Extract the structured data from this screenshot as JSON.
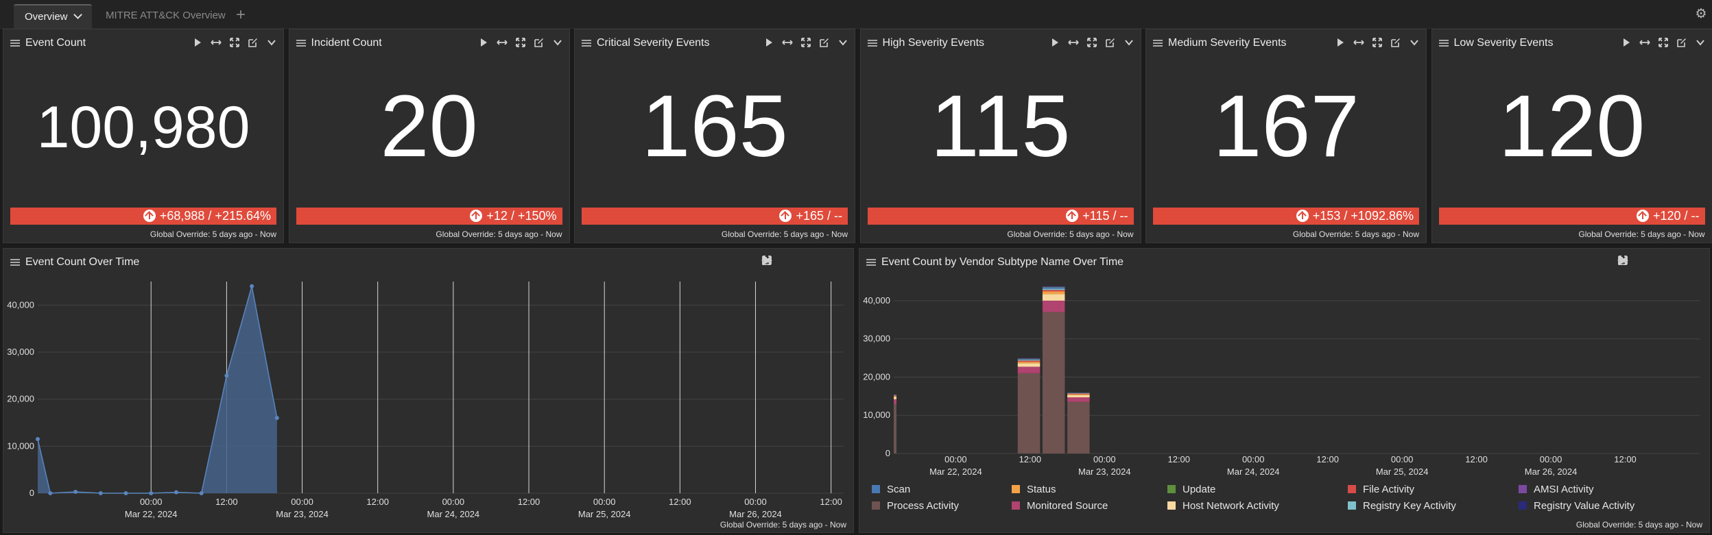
{
  "tabs": [
    {
      "label": "Overview",
      "active": true
    },
    {
      "label": "MITRE ATT&CK Overview",
      "active": false
    }
  ],
  "icons": {
    "add": "plus-icon",
    "settings": "gear-icon",
    "play": "play-icon",
    "resize": "resize-horizontal-icon",
    "expand": "expand-icon",
    "edit": "edit-icon",
    "menu": "chevron-down-icon",
    "drag": "hamburger-icon"
  },
  "colors": {
    "alert": "#e04a3b",
    "area": "#46648c"
  },
  "stats": [
    {
      "title": "Event Count",
      "value": "100,980",
      "change": "+68,988 / +215.64%",
      "override": "Global Override: 5 days ago - Now"
    },
    {
      "title": "Incident Count",
      "value": "20",
      "change": "+12 / +150%",
      "override": "Global Override: 5 days ago - Now"
    },
    {
      "title": "Critical Severity Events",
      "value": "165",
      "change": "+165 / --",
      "override": "Global Override: 5 days ago - Now"
    },
    {
      "title": "High Severity Events",
      "value": "115",
      "change": "+115 / --",
      "override": "Global Override: 5 days ago - Now"
    },
    {
      "title": "Medium Severity Events",
      "value": "167",
      "change": "+153 / +1092.86%",
      "override": "Global Override: 5 days ago - Now"
    },
    {
      "title": "Low Severity Events",
      "value": "120",
      "change": "+120 / --",
      "override": "Global Override: 5 days ago - Now"
    }
  ],
  "timeline": {
    "title": "Event Count Over Time",
    "override": "Global Override: 5 days ago - Now"
  },
  "vendor": {
    "title": "Event Count by Vendor Subtype Name Over Time",
    "override": "Global Override: 5 days ago - Now"
  },
  "chart_data": [
    {
      "type": "area",
      "title": "Event Count Over Time",
      "ylim": [
        0,
        45000
      ],
      "yticks": [
        0,
        10000,
        20000,
        30000,
        40000
      ],
      "ytick_labels": [
        "0",
        "10,000",
        "20,000",
        "30,000",
        "40,000"
      ],
      "xlim_hours": [
        -18,
        110
      ],
      "xticks": [
        {
          "h": 0,
          "label": "00:00",
          "date": "Mar 22, 2024"
        },
        {
          "h": 12,
          "label": "12:00",
          "date": ""
        },
        {
          "h": 24,
          "label": "00:00",
          "date": "Mar 23, 2024"
        },
        {
          "h": 36,
          "label": "12:00",
          "date": ""
        },
        {
          "h": 48,
          "label": "00:00",
          "date": "Mar 24, 2024"
        },
        {
          "h": 60,
          "label": "12:00",
          "date": ""
        },
        {
          "h": 72,
          "label": "00:00",
          "date": "Mar 25, 2024"
        },
        {
          "h": 84,
          "label": "12:00",
          "date": ""
        },
        {
          "h": 96,
          "label": "00:00",
          "date": "Mar 26, 2024"
        },
        {
          "h": 108,
          "label": "12:00",
          "date": ""
        }
      ],
      "x": [
        -18,
        -16,
        -12,
        -8,
        -4,
        0,
        4,
        8,
        12,
        16,
        20
      ],
      "values": [
        11500,
        0,
        300,
        0,
        0,
        0,
        200,
        0,
        25000,
        44000,
        16000
      ],
      "grid": true
    },
    {
      "type": "bar",
      "stacked": true,
      "title": "Event Count by Vendor Subtype Name Over Time",
      "ylim": [
        0,
        45000
      ],
      "yticks": [
        0,
        10000,
        20000,
        30000,
        40000
      ],
      "ytick_labels": [
        "0",
        "10,000",
        "20,000",
        "30,000",
        "40,000"
      ],
      "xlim_hours": [
        -10,
        120
      ],
      "xticks": [
        {
          "h": 0,
          "label": "00:00",
          "date": "Mar 22, 2024"
        },
        {
          "h": 12,
          "label": "12:00",
          "date": ""
        },
        {
          "h": 24,
          "label": "00:00",
          "date": "Mar 23, 2024"
        },
        {
          "h": 36,
          "label": "12:00",
          "date": ""
        },
        {
          "h": 48,
          "label": "00:00",
          "date": "Mar 24, 2024"
        },
        {
          "h": 60,
          "label": "12:00",
          "date": ""
        },
        {
          "h": 72,
          "label": "00:00",
          "date": "Mar 25, 2024"
        },
        {
          "h": 84,
          "label": "12:00",
          "date": ""
        },
        {
          "h": 96,
          "label": "00:00",
          "date": "Mar 26, 2024"
        },
        {
          "h": 108,
          "label": "12:00",
          "date": ""
        }
      ],
      "bin_hours": 4,
      "bins": [
        -10,
        10,
        14,
        18
      ],
      "series": [
        {
          "name": "Process Activity",
          "color": "#6e5350",
          "values": [
            13000,
            21000,
            37000,
            13500
          ]
        },
        {
          "name": "Monitored Source",
          "color": "#b0436f",
          "values": [
            1200,
            1700,
            3000,
            1200
          ]
        },
        {
          "name": "Host Network Activity",
          "color": "#f8d9a0",
          "values": [
            600,
            900,
            1700,
            600
          ]
        },
        {
          "name": "Status",
          "color": "#f2a247",
          "values": [
            200,
            400,
            700,
            200
          ]
        },
        {
          "name": "File Activity",
          "color": "#d64c48",
          "values": [
            200,
            300,
            400,
            200
          ]
        },
        {
          "name": "Registry Key Activity",
          "color": "#7fc2c9",
          "values": [
            100,
            200,
            300,
            100
          ]
        },
        {
          "name": "Scan",
          "color": "#4a78b2",
          "values": [
            100,
            200,
            400,
            100
          ]
        },
        {
          "name": "Update",
          "color": "#5e8e3e",
          "values": [
            0,
            100,
            100,
            0
          ]
        },
        {
          "name": "AMSI Activity",
          "color": "#7b4aa0",
          "values": [
            0,
            100,
            100,
            0
          ]
        },
        {
          "name": "Registry Value Activity",
          "color": "#2a2a7a",
          "values": [
            0,
            100,
            100,
            0
          ]
        }
      ],
      "legend": [
        "Scan",
        "Status",
        "Update",
        "File Activity",
        "AMSI Activity",
        "Process Activity",
        "Monitored Source",
        "Host Network Activity",
        "Registry Key Activity",
        "Registry Value Activity"
      ],
      "legend_position": "bottom"
    }
  ]
}
